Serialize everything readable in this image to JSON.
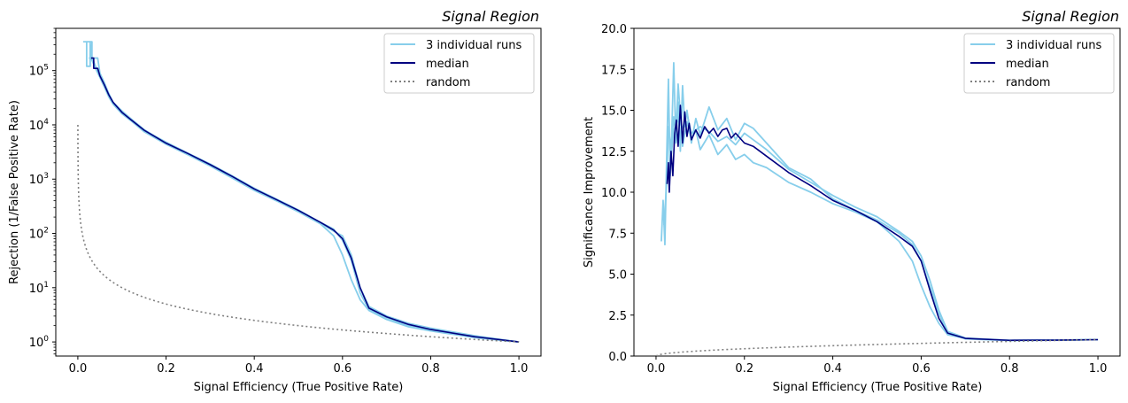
{
  "chart_data": [
    {
      "type": "line",
      "title": "Signal Region",
      "xlabel": "Signal Efficiency (True Positive Rate)",
      "ylabel": "Rejection (1/False Positive Rate)",
      "xlim": [
        -0.05,
        1.05
      ],
      "ylim": [
        0.55,
        600000
      ],
      "yscale": "log",
      "xticks": [
        "0.0",
        "0.2",
        "0.4",
        "0.6",
        "0.8",
        "1.0"
      ],
      "yticks": [
        {
          "base": "10",
          "exp": "0"
        },
        {
          "base": "10",
          "exp": "1"
        },
        {
          "base": "10",
          "exp": "2"
        },
        {
          "base": "10",
          "exp": "3"
        },
        {
          "base": "10",
          "exp": "4"
        },
        {
          "base": "10",
          "exp": "5"
        }
      ],
      "legend_position": "top-right",
      "grid": false,
      "legend": [
        "3 individual runs",
        "median",
        "random"
      ],
      "series": [
        {
          "role": "run",
          "color": "#87ceeb",
          "x": [
            0.012,
            0.02,
            0.02,
            0.028,
            0.028,
            0.03,
            0.04,
            0.05,
            0.06,
            0.07,
            0.08,
            0.1,
            0.12,
            0.15,
            0.2,
            0.25,
            0.3,
            0.35,
            0.4,
            0.45,
            0.5,
            0.55,
            0.58,
            0.6,
            0.62,
            0.64,
            0.66,
            0.7,
            0.75,
            0.8,
            0.9,
            1.0
          ],
          "y": [
            340000,
            340000,
            120000,
            120000,
            340000,
            170000,
            110000,
            75000,
            50000,
            33000,
            24000,
            16000,
            12000,
            7500,
            4400,
            2800,
            1750,
            1050,
            620,
            400,
            250,
            150,
            90,
            40,
            14,
            6,
            3.8,
            2.6,
            1.9,
            1.6,
            1.2,
            1.0
          ]
        },
        {
          "role": "run",
          "color": "#87ceeb",
          "x": [
            0.02,
            0.032,
            0.032,
            0.04,
            0.05,
            0.06,
            0.07,
            0.08,
            0.1,
            0.12,
            0.15,
            0.2,
            0.25,
            0.3,
            0.35,
            0.4,
            0.45,
            0.5,
            0.55,
            0.58,
            0.6,
            0.62,
            0.64,
            0.66,
            0.7,
            0.75,
            0.8,
            0.9,
            1.0
          ],
          "y": [
            340000,
            340000,
            180000,
            120000,
            85000,
            55000,
            36000,
            25000,
            17000,
            12500,
            8000,
            4800,
            3000,
            1900,
            1150,
            680,
            430,
            270,
            160,
            120,
            75,
            32,
            8,
            4,
            2.8,
            2.0,
            1.7,
            1.25,
            1.0
          ]
        },
        {
          "role": "run",
          "color": "#87ceeb",
          "x": [
            0.025,
            0.045,
            0.05,
            0.06,
            0.07,
            0.08,
            0.1,
            0.12,
            0.15,
            0.2,
            0.25,
            0.3,
            0.35,
            0.4,
            0.45,
            0.5,
            0.55,
            0.58,
            0.6,
            0.62,
            0.64,
            0.66,
            0.7,
            0.75,
            0.8,
            0.9,
            1.0
          ],
          "y": [
            170000,
            170000,
            90000,
            60000,
            38000,
            26000,
            18000,
            13000,
            8200,
            4600,
            2900,
            1800,
            1100,
            650,
            410,
            260,
            155,
            110,
            90,
            40,
            10,
            4.5,
            3,
            2.2,
            1.8,
            1.3,
            1.0
          ]
        },
        {
          "role": "median",
          "name": "median",
          "color": "#000080",
          "x": [
            0.03,
            0.036,
            0.036,
            0.045,
            0.05,
            0.06,
            0.07,
            0.08,
            0.1,
            0.12,
            0.15,
            0.2,
            0.25,
            0.3,
            0.35,
            0.4,
            0.45,
            0.5,
            0.55,
            0.58,
            0.6,
            0.62,
            0.64,
            0.66,
            0.7,
            0.75,
            0.8,
            0.9,
            1.0
          ],
          "y": [
            170000,
            170000,
            110000,
            110000,
            80000,
            55000,
            36000,
            26000,
            17000,
            12500,
            8000,
            4600,
            2950,
            1850,
            1120,
            660,
            420,
            265,
            160,
            115,
            80,
            35,
            10,
            4.2,
            2.9,
            2.1,
            1.7,
            1.25,
            1.0
          ]
        },
        {
          "role": "random",
          "name": "random",
          "color": "#808080",
          "dashed": true,
          "random_curve": "1/x",
          "x_start": 0.0001,
          "x_end": 1.0
        }
      ]
    },
    {
      "type": "line",
      "title": "Signal Region",
      "xlabel": "Signal Efficiency (True Positive Rate)",
      "ylabel": "Significance Improvement",
      "xlim": [
        -0.05,
        1.05
      ],
      "ylim": [
        0,
        20
      ],
      "yscale": "linear",
      "xticks": [
        "0.0",
        "0.2",
        "0.4",
        "0.6",
        "0.8",
        "1.0"
      ],
      "yticks": [
        "0.0",
        "2.5",
        "5.0",
        "7.5",
        "10.0",
        "12.5",
        "15.0",
        "17.5",
        "20.0"
      ],
      "legend_position": "top-right",
      "grid": false,
      "legend": [
        "3 individual runs",
        "median",
        "random"
      ],
      "series": [
        {
          "role": "run",
          "color": "#87ceeb",
          "x": [
            0.012,
            0.016,
            0.02,
            0.024,
            0.028,
            0.032,
            0.036,
            0.04,
            0.045,
            0.05,
            0.055,
            0.06,
            0.065,
            0.07,
            0.08,
            0.09,
            0.1,
            0.12,
            0.14,
            0.16,
            0.18,
            0.2,
            0.22,
            0.25,
            0.3,
            0.35,
            0.4,
            0.45,
            0.5,
            0.55,
            0.58,
            0.6,
            0.62,
            0.64,
            0.66,
            0.7,
            0.8,
            0.9,
            1.0
          ],
          "y": [
            7.0,
            9.5,
            6.8,
            12.0,
            16.9,
            11.0,
            14.0,
            17.9,
            13.0,
            15.5,
            12.5,
            16.5,
            14.0,
            15.0,
            13.0,
            14.5,
            13.5,
            15.2,
            13.8,
            14.5,
            13.2,
            14.2,
            13.9,
            13.0,
            11.5,
            10.8,
            9.6,
            8.9,
            8.3,
            7.5,
            6.8,
            5.8,
            4.2,
            2.6,
            1.4,
            1.05,
            0.95,
            0.97,
            1.0
          ]
        },
        {
          "role": "run",
          "color": "#87ceeb",
          "x": [
            0.018,
            0.024,
            0.028,
            0.034,
            0.04,
            0.045,
            0.05,
            0.06,
            0.07,
            0.08,
            0.09,
            0.1,
            0.12,
            0.14,
            0.16,
            0.18,
            0.2,
            0.22,
            0.25,
            0.3,
            0.35,
            0.4,
            0.45,
            0.5,
            0.55,
            0.58,
            0.6,
            0.62,
            0.64,
            0.66,
            0.7,
            0.8,
            0.9,
            1.0
          ],
          "y": [
            8.0,
            10.5,
            14.0,
            12.5,
            14.6,
            13.5,
            16.6,
            12.8,
            14.3,
            13.2,
            13.8,
            12.6,
            13.5,
            12.3,
            12.9,
            12.0,
            12.3,
            11.8,
            11.5,
            10.6,
            10.0,
            9.3,
            8.8,
            8.2,
            7.0,
            5.8,
            4.3,
            3.0,
            2.0,
            1.3,
            1.08,
            0.96,
            0.97,
            1.0
          ]
        },
        {
          "role": "run",
          "color": "#87ceeb",
          "x": [
            0.03,
            0.04,
            0.05,
            0.06,
            0.07,
            0.08,
            0.1,
            0.12,
            0.14,
            0.16,
            0.18,
            0.2,
            0.22,
            0.25,
            0.3,
            0.35,
            0.4,
            0.45,
            0.5,
            0.55,
            0.58,
            0.6,
            0.62,
            0.64,
            0.66,
            0.7,
            0.8,
            0.9,
            1.0
          ],
          "y": [
            11.0,
            13.8,
            14.4,
            13.9,
            14.8,
            13.6,
            14.0,
            13.7,
            13.1,
            13.4,
            12.9,
            13.6,
            13.2,
            12.6,
            11.4,
            10.6,
            9.8,
            9.1,
            8.5,
            7.6,
            7.0,
            6.1,
            4.6,
            2.8,
            1.5,
            1.1,
            0.96,
            0.97,
            1.0
          ]
        },
        {
          "role": "median",
          "name": "median",
          "color": "#000080",
          "x": [
            0.025,
            0.028,
            0.03,
            0.034,
            0.038,
            0.042,
            0.046,
            0.05,
            0.055,
            0.06,
            0.065,
            0.07,
            0.075,
            0.08,
            0.09,
            0.1,
            0.11,
            0.12,
            0.13,
            0.14,
            0.15,
            0.16,
            0.17,
            0.18,
            0.2,
            0.22,
            0.25,
            0.3,
            0.35,
            0.4,
            0.45,
            0.5,
            0.55,
            0.58,
            0.6,
            0.62,
            0.64,
            0.66,
            0.7,
            0.8,
            0.9,
            1.0
          ],
          "y": [
            10.5,
            11.8,
            10.0,
            12.5,
            11.0,
            13.5,
            14.4,
            12.8,
            15.3,
            13.0,
            14.9,
            13.4,
            14.2,
            13.2,
            13.8,
            13.3,
            14.0,
            13.6,
            13.9,
            13.4,
            13.8,
            13.9,
            13.3,
            13.6,
            13.0,
            12.8,
            12.2,
            11.2,
            10.4,
            9.5,
            8.9,
            8.2,
            7.3,
            6.7,
            5.8,
            4.0,
            2.3,
            1.4,
            1.08,
            0.96,
            0.97,
            1.0
          ]
        },
        {
          "role": "random",
          "name": "random",
          "color": "#808080",
          "dashed": true,
          "random_curve": "sqrt",
          "x_start": 0.0,
          "x_end": 1.0
        }
      ]
    }
  ]
}
